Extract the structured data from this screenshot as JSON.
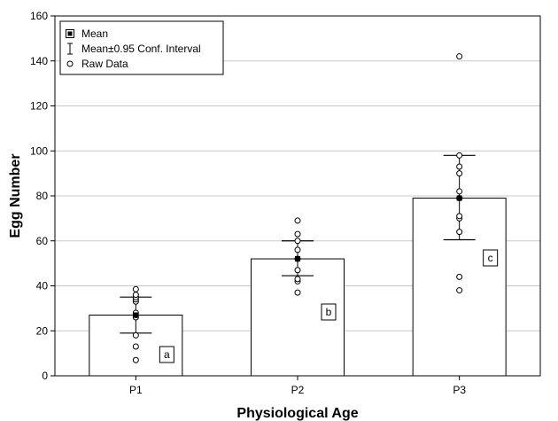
{
  "chart_data": {
    "type": "bar",
    "xlabel": "Physiological Age",
    "ylabel": "Egg Number",
    "ylim": [
      0,
      160
    ],
    "yticks": [
      0,
      20,
      40,
      60,
      80,
      100,
      120,
      140,
      160
    ],
    "categories": [
      "P1",
      "P2",
      "P3"
    ],
    "means": [
      27,
      52,
      79
    ],
    "ci_lower": [
      19,
      44.5,
      60.5
    ],
    "ci_upper": [
      35,
      60,
      98
    ],
    "letters": [
      "a",
      "b",
      "c"
    ],
    "raw_data": [
      [
        7,
        13,
        18,
        26,
        27,
        28,
        33,
        34,
        35,
        36,
        38.5
      ],
      [
        37,
        42,
        43,
        47,
        52,
        56,
        60,
        63,
        69
      ],
      [
        38,
        44,
        64,
        70,
        71,
        79,
        82,
        90,
        93,
        98,
        142
      ]
    ],
    "grid": true,
    "legend": {
      "position": "top-left",
      "entries": [
        {
          "label": "Mean",
          "marker": "filled-square"
        },
        {
          "label": "Mean±0.95 Conf. Interval",
          "marker": "error-bar"
        },
        {
          "label": "Raw Data",
          "marker": "open-circle"
        }
      ]
    },
    "colors": {
      "bar_fill": "#ffffff",
      "stroke": "#000000",
      "grid": "#c8c8c8"
    }
  }
}
